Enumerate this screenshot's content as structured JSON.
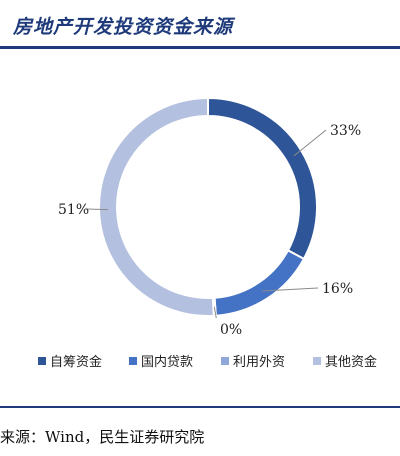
{
  "header": {
    "title": "房地产开发投资资金来源"
  },
  "chart_data": {
    "type": "pie",
    "donut": true,
    "title": "房地产开发投资资金来源",
    "legend_position": "bottom",
    "slices": [
      {
        "name": "自筹资金",
        "value": 33,
        "label": "33%",
        "color": "#2e5597"
      },
      {
        "name": "国内贷款",
        "value": 16,
        "label": "16%",
        "color": "#4472c4"
      },
      {
        "name": "利用外资",
        "value": 0.3,
        "label": "0%",
        "color": "#8fa8d8"
      },
      {
        "name": "其他资金",
        "value": 51,
        "label": "51%",
        "color": "#b4c0df"
      }
    ]
  },
  "footer": {
    "source": "来源：Wind，民生证券研究院"
  }
}
